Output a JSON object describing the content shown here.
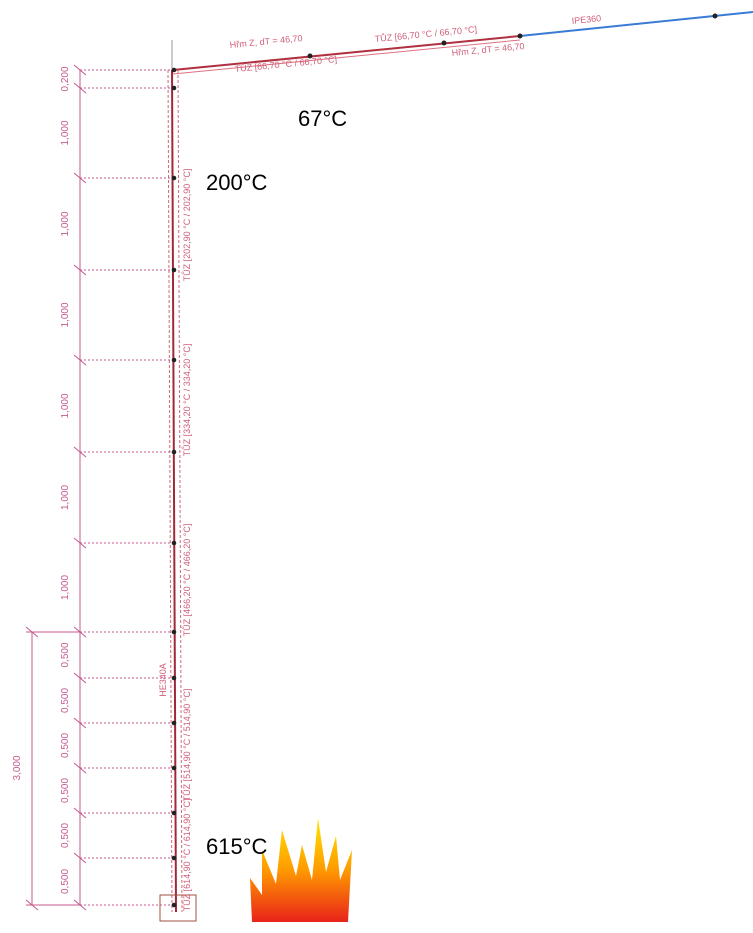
{
  "beam": {
    "section": "IPE360",
    "labels": [
      "Hřm Z, dT = 46,70",
      "TŮZ [66,70 °C / 66,70 °C]",
      "TŮZ [66,70 °C / 66,70 °C]",
      "Hřm Z, dT = 46,70"
    ]
  },
  "column": {
    "section": "HE340A",
    "labels": [
      "TŮZ [202,90 °C / 202,90 °C]",
      "TŮZ [334,20 °C / 334,20 °C]",
      "TŮZ [466,20 °C / 466,20 °C]",
      "TŮZ [514,90 °C / 514,90 °C]",
      "TŮZ [614,90 °C / 614,90 °C]"
    ]
  },
  "dimensions": {
    "chain": [
      "0,200",
      "1,000",
      "1,000",
      "1,000",
      "1,000",
      "1,000",
      "1,000",
      "0,500",
      "0,500",
      "0,500",
      "0,500",
      "0,500",
      "0,500"
    ],
    "total": "3,000"
  },
  "temperatures": [
    "67°C",
    "200°C",
    "615°C"
  ]
}
